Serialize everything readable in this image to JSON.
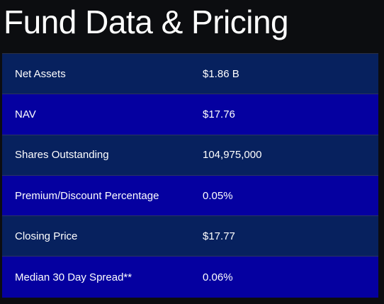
{
  "header": {
    "title": "Fund Data & Pricing"
  },
  "table": {
    "rows": [
      {
        "label": "Net Assets",
        "value": "$1.86 B"
      },
      {
        "label": "NAV",
        "value": "$17.76"
      },
      {
        "label": "Shares Outstanding",
        "value": "104,975,000"
      },
      {
        "label": "Premium/Discount Percentage",
        "value": "0.05%"
      },
      {
        "label": "Closing Price",
        "value": "$17.77"
      },
      {
        "label": "Median 30 Day Spread**",
        "value": "0.06%"
      }
    ]
  },
  "colors": {
    "background": "#0c0d10",
    "row_odd": "#07215e",
    "row_even": "#0500a0",
    "text": "#ffffff"
  }
}
